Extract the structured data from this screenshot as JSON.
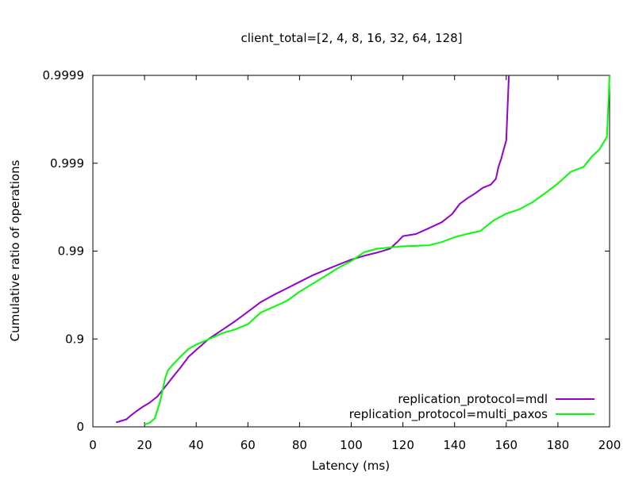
{
  "chart_data": {
    "type": "line",
    "title": "client_total=[2, 4, 8, 16, 32, 64, 128]",
    "xlabel": "Latency (ms)",
    "ylabel": "Cumulative ratio of operations",
    "xlim": [
      0,
      200
    ],
    "ylim": [
      0,
      0.9999
    ],
    "y_scale": "log(1/(1-p))",
    "x_ticks": [
      {
        "value": 0,
        "label": "0"
      },
      {
        "value": 20,
        "label": "20"
      },
      {
        "value": 40,
        "label": "40"
      },
      {
        "value": 60,
        "label": "60"
      },
      {
        "value": 80,
        "label": "80"
      },
      {
        "value": 100,
        "label": "100"
      },
      {
        "value": 120,
        "label": "120"
      },
      {
        "value": 140,
        "label": "140"
      },
      {
        "value": 160,
        "label": "160"
      },
      {
        "value": 180,
        "label": "180"
      },
      {
        "value": 200,
        "label": "200"
      }
    ],
    "y_ticks": [
      {
        "value": 0,
        "label": "0"
      },
      {
        "value": 0.9,
        "label": "0.9"
      },
      {
        "value": 0.99,
        "label": "0.99"
      },
      {
        "value": 0.999,
        "label": "0.999"
      },
      {
        "value": 0.9999,
        "label": "0.9999"
      }
    ],
    "legend_position": "bottom-right",
    "series": [
      {
        "name": "replication_protocol=mdl",
        "color": "#9400d3",
        "x": [
          9,
          13,
          15,
          17,
          19,
          22,
          25,
          28,
          31,
          34,
          37,
          40,
          45,
          50,
          55,
          60,
          65,
          70,
          75,
          80,
          85,
          90,
          95,
          100,
          105,
          110,
          115,
          118,
          120,
          125,
          130,
          135,
          139,
          142,
          145,
          148,
          151,
          154,
          156,
          157,
          158,
          159,
          160,
          161
        ],
        "y": [
          0.11,
          0.18,
          0.27,
          0.34,
          0.4,
          0.47,
          0.55,
          0.65,
          0.73,
          0.79,
          0.84,
          0.867,
          0.901,
          0.921,
          0.937,
          0.951,
          0.962,
          0.9685,
          0.9734,
          0.9776,
          0.9811,
          0.9836,
          0.9857,
          0.9875,
          0.9887,
          0.9896,
          0.9906,
          0.9922,
          0.99325,
          0.9936,
          0.9945,
          0.9953,
          0.9962,
          0.9971,
          0.9975,
          0.9978,
          0.9981,
          0.99825,
          0.9985,
          0.9989,
          0.9991,
          0.9993,
          0.99945,
          0.9999
        ]
      },
      {
        "name": "replication_protocol=multi_paxos",
        "color": "#00ff00",
        "x": [
          20,
          22,
          24,
          26,
          27,
          28,
          29,
          31,
          34,
          37,
          40,
          45,
          50,
          55,
          60,
          65,
          70,
          75,
          80,
          85,
          90,
          95,
          100,
          105,
          110,
          115,
          120,
          130,
          135,
          140,
          145,
          150,
          155,
          160,
          165,
          170,
          175,
          180,
          185,
          190,
          193,
          196,
          199,
          200
        ],
        "y": [
          0.06,
          0.1,
          0.2,
          0.48,
          0.62,
          0.72,
          0.77,
          0.805,
          0.842,
          0.87,
          0.884,
          0.9,
          0.914,
          0.922,
          0.932,
          0.95,
          0.957,
          0.963,
          0.971,
          0.9764,
          0.9808,
          0.9845,
          0.987,
          0.9897,
          0.9906,
          0.9909,
          0.9912,
          0.9914,
          0.9921,
          0.99305,
          0.99365,
          0.9941,
          0.9955,
          0.99625,
          0.99665,
          0.9972,
          0.9978,
          0.9983,
          0.99875,
          0.9989,
          0.99915,
          0.9993,
          0.9995,
          0.9999
        ]
      }
    ]
  }
}
